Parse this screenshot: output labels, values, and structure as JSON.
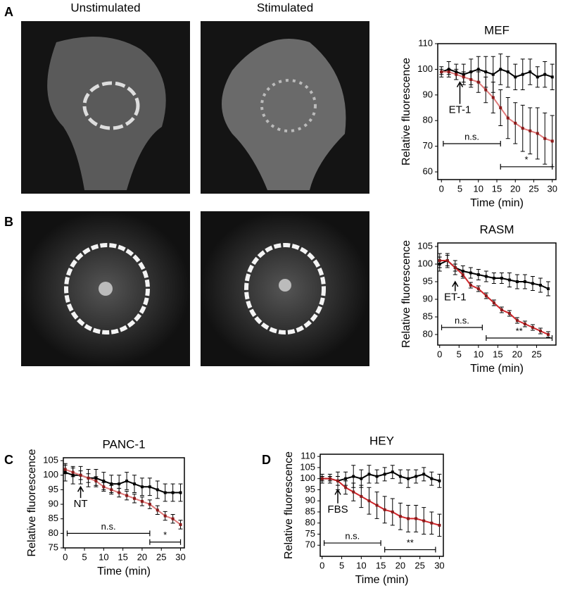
{
  "panel_labels": [
    "A",
    "B",
    "C",
    "D"
  ],
  "image_labels": [
    "Unstimulated",
    "Stimulated"
  ],
  "chart_data": [
    {
      "type": "line",
      "title": "MEF",
      "xlabel": "Time (min)",
      "ylabel": "Relative fluorescence",
      "x": [
        0,
        2,
        4,
        6,
        8,
        10,
        12,
        14,
        16,
        18,
        20,
        22,
        24,
        26,
        28,
        30
      ],
      "xlim": [
        -1,
        31
      ],
      "xticks": [
        0,
        5,
        10,
        15,
        20,
        25,
        30
      ],
      "ylim": [
        57,
        110
      ],
      "yticks": [
        60,
        70,
        80,
        90,
        100,
        110
      ],
      "series": [
        {
          "color": "#000000",
          "values": [
            99,
            100,
            99,
            98,
            99,
            100,
            99,
            98,
            100,
            99,
            97,
            98,
            99,
            97,
            98,
            97
          ],
          "errors": [
            2,
            3,
            3,
            4,
            5,
            5,
            6,
            7,
            6,
            6,
            5,
            6,
            5,
            4,
            5,
            5
          ]
        },
        {
          "color": "#e07b7b",
          "values": [
            99,
            99,
            98,
            97,
            96,
            95,
            92,
            89,
            85,
            81,
            79,
            77,
            76,
            75,
            73,
            72
          ],
          "errors": [
            1,
            1,
            2,
            2,
            3,
            4,
            5,
            6,
            7,
            8,
            8,
            9,
            9,
            10,
            10,
            10
          ]
        }
      ],
      "annotations": [
        {
          "text": "ET-1",
          "x": 5,
          "y": 84,
          "arrow_to": 95
        }
      ],
      "brackets": [
        {
          "text": "n.s.",
          "x": [
            0.5,
            16
          ],
          "y": 71
        },
        {
          "text": "*",
          "x": [
            16,
            30
          ],
          "y": 62
        }
      ]
    },
    {
      "type": "line",
      "title": "RASM",
      "xlabel": "Time (min)",
      "ylabel": "Relative fluorescence",
      "x": [
        0,
        2,
        4,
        6,
        8,
        10,
        12,
        14,
        16,
        18,
        20,
        22,
        24,
        26,
        28
      ],
      "xlim": [
        -0.5,
        30
      ],
      "xticks": [
        0,
        5,
        10,
        15,
        20,
        25
      ],
      "ylim": [
        77,
        106
      ],
      "yticks": [
        80,
        85,
        90,
        95,
        100,
        105
      ],
      "series": [
        {
          "color": "#000000",
          "values": [
            100,
            101,
            99,
            98,
            97.5,
            97,
            96.5,
            96,
            96,
            95.5,
            95,
            95,
            94.5,
            94,
            93
          ],
          "errors": [
            2,
            2,
            2,
            1.5,
            1.5,
            1.5,
            1.5,
            1.5,
            1.5,
            2,
            2,
            2,
            2,
            2,
            2
          ]
        },
        {
          "color": "#d0262b",
          "values": [
            101,
            101,
            99,
            97,
            94,
            93,
            91,
            89,
            87,
            86,
            84,
            83,
            82,
            81,
            80
          ],
          "errors": [
            2,
            1.5,
            1,
            1,
            0.8,
            0.8,
            0.8,
            0.8,
            0.8,
            0.8,
            0.8,
            0.8,
            0.8,
            0.8,
            0.8
          ]
        }
      ],
      "annotations": [
        {
          "text": "ET-1",
          "x": 4,
          "y": 90.5,
          "arrow_to": 95
        }
      ],
      "brackets": [
        {
          "text": "n.s.",
          "x": [
            0.5,
            11
          ],
          "y": 82
        },
        {
          "text": "**",
          "x": [
            12,
            29
          ],
          "y": 79
        }
      ]
    },
    {
      "type": "line",
      "title": "PANC-1",
      "xlabel": "Time (min)",
      "ylabel": "Relative fluorescence",
      "x": [
        0,
        2,
        4,
        6,
        8,
        10,
        12,
        14,
        16,
        18,
        20,
        22,
        24,
        26,
        28,
        30
      ],
      "xlim": [
        -0.5,
        31
      ],
      "xticks": [
        0,
        5,
        10,
        15,
        20,
        25,
        30
      ],
      "ylim": [
        75,
        106
      ],
      "yticks": [
        75,
        80,
        85,
        90,
        95,
        100,
        105
      ],
      "series": [
        {
          "color": "#000000",
          "values": [
            101,
            100,
            100,
            99,
            99,
            98,
            97,
            97,
            98,
            97,
            96,
            96,
            95,
            94,
            94,
            94
          ],
          "errors": [
            3,
            3,
            3,
            3,
            3,
            3,
            3,
            3,
            3,
            3,
            3,
            3,
            3,
            3,
            3,
            3
          ]
        },
        {
          "color": "#e07b7b",
          "values": [
            102,
            101,
            100,
            99,
            98,
            96,
            95,
            94,
            93,
            92,
            91,
            90,
            88,
            86,
            85,
            83
          ],
          "errors": [
            1.5,
            1.5,
            1.5,
            1.5,
            1.5,
            1.5,
            1.5,
            1.5,
            1.5,
            1.5,
            1.5,
            1.5,
            1.5,
            1.5,
            1.5,
            1.5
          ]
        }
      ],
      "annotations": [
        {
          "text": "NT",
          "x": 4,
          "y": 90,
          "arrow_to": 96
        }
      ],
      "brackets": [
        {
          "text": "n.s.",
          "x": [
            0.5,
            22
          ],
          "y": 80
        },
        {
          "text": "*",
          "x": [
            22,
            30
          ],
          "y": 77
        }
      ]
    },
    {
      "type": "line",
      "title": "HEY",
      "xlabel": "Time (min)",
      "ylabel": "Relative fluorescence",
      "x": [
        0,
        2,
        4,
        6,
        8,
        10,
        12,
        14,
        16,
        18,
        20,
        22,
        24,
        26,
        28,
        30
      ],
      "xlim": [
        -0.5,
        31
      ],
      "xticks": [
        0,
        5,
        10,
        15,
        20,
        25,
        30
      ],
      "ylim": [
        65,
        111
      ],
      "yticks": [
        70,
        75,
        80,
        85,
        90,
        95,
        100,
        105,
        110
      ],
      "series": [
        {
          "color": "#000000",
          "values": [
            100,
            100,
            99,
            100,
            101,
            100,
            102,
            101,
            102,
            103,
            101,
            100,
            101,
            102,
            100,
            99
          ],
          "errors": [
            2,
            2,
            4,
            3,
            5,
            4,
            4,
            3,
            3,
            3,
            3,
            4,
            3,
            3,
            3,
            3
          ]
        },
        {
          "color": "#d0262b",
          "values": [
            100,
            100,
            99,
            96,
            94,
            92,
            90,
            88,
            86,
            85,
            83,
            82,
            82,
            81,
            80,
            79
          ],
          "errors": [
            1,
            1,
            2,
            3,
            4,
            5,
            6,
            6,
            6,
            6,
            6,
            6,
            6,
            6,
            5,
            5
          ]
        }
      ],
      "annotations": [
        {
          "text": "FBS",
          "x": 4,
          "y": 86,
          "arrow_to": 95
        }
      ],
      "brackets": [
        {
          "text": "n.s.",
          "x": [
            0.5,
            15
          ],
          "y": 71
        },
        {
          "text": "**",
          "x": [
            16,
            29
          ],
          "y": 68
        }
      ]
    }
  ]
}
